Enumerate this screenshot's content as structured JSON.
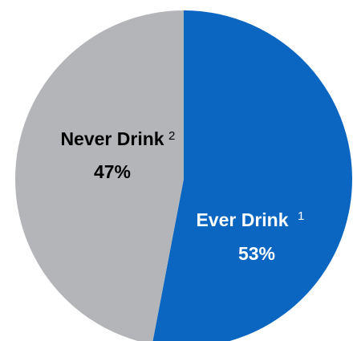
{
  "chart_data": {
    "type": "pie",
    "slices": [
      {
        "label": "Ever Drink",
        "footnote": "1",
        "value": 53,
        "value_label": "53%",
        "color": "#0b66c2",
        "text_color": "#ffffff"
      },
      {
        "label": "Never Drink",
        "footnote": "2",
        "value": 47,
        "value_label": "47%",
        "color": "#b3b5b8",
        "text_color": "#000000"
      }
    ],
    "start": "top",
    "direction": "clockwise",
    "legend": "none"
  }
}
